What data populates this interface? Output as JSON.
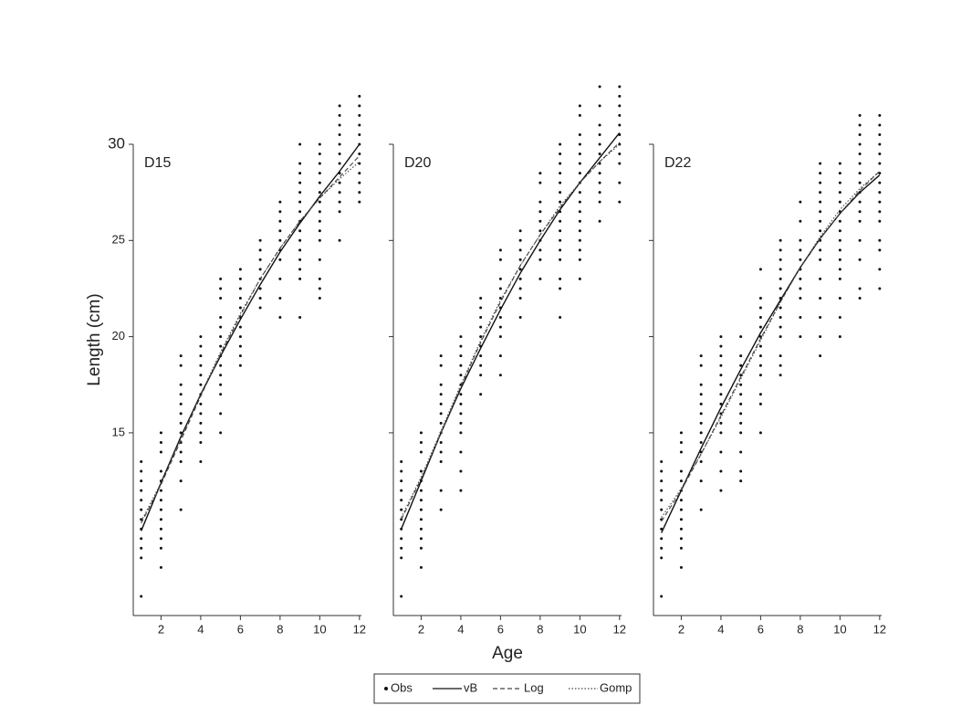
{
  "chart_data": [
    {
      "type": "scatter",
      "title": "D15",
      "ylabel": "Length (cm)",
      "xlim": [
        0.6,
        12.1
      ],
      "xticks": [
        2,
        4,
        6,
        8,
        10,
        12
      ],
      "ylim": [
        5.5,
        30
      ],
      "yticks": [
        15,
        20,
        25,
        30
      ],
      "ages": [
        1,
        2,
        3,
        4,
        5,
        6,
        7,
        8,
        9,
        10,
        11,
        12
      ],
      "series": [
        {
          "name": "Obs",
          "color": "#111111",
          "style": "dots",
          "values": [
            [
              13.5,
              13,
              12.5,
              12,
              11.5,
              11,
              10.5,
              10,
              9.5,
              9,
              8.5,
              6.5
            ],
            [
              15,
              14.5,
              14,
              13,
              12.5,
              12,
              11.5,
              11,
              10.5,
              10,
              9.5,
              9,
              8
            ],
            [
              19,
              18.5,
              17.5,
              17,
              16.5,
              16,
              15.5,
              15,
              14.5,
              14,
              13.5,
              12.5,
              11
            ],
            [
              20,
              19.5,
              19,
              18.5,
              18,
              17.5,
              17,
              16.5,
              16,
              15.5,
              15,
              14.5,
              13.5
            ],
            [
              23,
              22.5,
              22,
              21,
              20.5,
              20,
              19.5,
              19,
              18.5,
              18,
              17.5,
              17,
              16,
              15
            ],
            [
              23.5,
              23,
              22.5,
              22,
              21.5,
              21,
              20.5,
              20,
              19.5,
              19,
              18.5
            ],
            [
              25,
              24.5,
              24,
              23.5,
              23,
              22.5,
              22,
              21.5
            ],
            [
              27,
              26.5,
              26,
              25.5,
              25,
              24.5,
              24,
              23,
              22,
              21
            ],
            [
              30,
              29,
              28.5,
              28,
              27.5,
              27,
              26.5,
              26,
              25.5,
              25,
              24.5,
              24,
              23.5,
              23,
              21
            ],
            [
              30,
              29.5,
              29,
              28.5,
              28,
              27.5,
              27,
              26.5,
              26,
              25.5,
              25,
              24,
              23,
              22.5,
              22
            ],
            [
              32,
              31.5,
              31,
              30.5,
              30,
              29.5,
              29,
              28.5,
              28,
              27.5,
              27,
              26.5,
              25
            ],
            [
              32.5,
              32,
              31.5,
              31,
              30.5,
              30,
              29.5,
              29,
              28.5,
              28,
              27.5,
              27
            ]
          ]
        },
        {
          "name": "vB",
          "color": "#111111",
          "style": "solid",
          "values": [
            9.9,
            12.4,
            14.8,
            17.0,
            19.0,
            20.9,
            22.7,
            24.4,
            25.9,
            27.3,
            28.6,
            30.0
          ]
        },
        {
          "name": "Log",
          "color": "#444444",
          "style": "dashed",
          "values": [
            10.3,
            12.3,
            14.6,
            16.9,
            19.1,
            21.1,
            23.0,
            24.6,
            26.0,
            27.2,
            28.3,
            29.4
          ]
        },
        {
          "name": "Gomp",
          "color": "#444444",
          "style": "dotted",
          "values": [
            10.4,
            12.4,
            14.7,
            17.0,
            19.2,
            21.2,
            23.0,
            24.6,
            26.0,
            27.2,
            28.2,
            29.1
          ]
        }
      ]
    },
    {
      "type": "scatter",
      "title": "D20",
      "xlabel": "Age",
      "xlim": [
        0.6,
        12.1
      ],
      "xticks": [
        2,
        4,
        6,
        8,
        10,
        12
      ],
      "ylim": [
        5.5,
        30
      ],
      "ages": [
        1,
        2,
        3,
        4,
        5,
        6,
        7,
        8,
        9,
        10,
        11,
        12
      ],
      "series": [
        {
          "name": "Obs",
          "color": "#111111",
          "style": "dots",
          "values": [
            [
              13.5,
              13,
              12.5,
              12,
              11.5,
              11,
              10.5,
              10,
              9.5,
              9,
              8.5,
              6.5
            ],
            [
              15,
              14.5,
              14,
              13,
              12.5,
              12,
              11.5,
              11,
              10.5,
              10,
              9.5,
              9,
              8
            ],
            [
              19,
              18.5,
              17.5,
              17,
              16.5,
              16,
              15.5,
              15,
              14.5,
              14,
              13.5,
              12,
              11
            ],
            [
              20,
              19.5,
              19,
              18.5,
              18,
              17.5,
              17,
              16.5,
              16,
              15.5,
              15,
              14,
              13,
              12
            ],
            [
              22,
              21.5,
              21,
              20.5,
              20,
              19.5,
              19,
              18.5,
              18,
              17
            ],
            [
              24.5,
              24,
              23,
              22.5,
              22,
              21.5,
              21,
              20.5,
              20,
              19,
              18
            ],
            [
              25.5,
              25,
              24.5,
              24,
              23.5,
              23,
              22.5,
              22,
              21
            ],
            [
              28.5,
              28,
              27,
              26.5,
              26,
              25.5,
              25,
              24.5,
              24,
              23
            ],
            [
              30,
              29.5,
              29,
              28.5,
              28,
              27.5,
              27,
              26.5,
              26,
              25.5,
              25,
              24.5,
              24,
              23,
              22.5,
              21
            ],
            [
              32,
              31.5,
              30.5,
              30,
              29.5,
              29,
              28.5,
              28,
              27.5,
              27,
              26.5,
              26,
              25.5,
              25,
              24.5,
              24,
              23
            ],
            [
              33,
              32,
              31,
              30.5,
              30,
              29.5,
              29,
              28.5,
              28,
              27.5,
              27,
              26
            ],
            [
              33,
              32.5,
              32,
              31.5,
              31,
              30.5,
              30,
              29.5,
              29,
              28,
              27
            ]
          ]
        },
        {
          "name": "vB",
          "color": "#111111",
          "style": "solid",
          "values": [
            10.0,
            12.5,
            15.0,
            17.3,
            19.4,
            21.4,
            23.3,
            25.0,
            26.6,
            28.0,
            29.3,
            30.6
          ]
        },
        {
          "name": "Log",
          "color": "#444444",
          "style": "dashed",
          "values": [
            10.5,
            12.6,
            15.0,
            17.4,
            19.7,
            21.8,
            23.7,
            25.3,
            26.7,
            28.0,
            29.1,
            30.1
          ]
        },
        {
          "name": "Gomp",
          "color": "#444444",
          "style": "dotted",
          "values": [
            10.6,
            12.7,
            15.1,
            17.5,
            19.8,
            21.9,
            23.7,
            25.3,
            26.8,
            28.0,
            29.1,
            30.0
          ]
        }
      ]
    },
    {
      "type": "scatter",
      "title": "D22",
      "xlim": [
        0.6,
        12.1
      ],
      "xticks": [
        2,
        4,
        6,
        8,
        10,
        12
      ],
      "ylim": [
        5.5,
        30
      ],
      "ages": [
        1,
        2,
        3,
        4,
        5,
        6,
        7,
        8,
        9,
        10,
        11,
        12
      ],
      "series": [
        {
          "name": "Obs",
          "color": "#111111",
          "style": "dots",
          "values": [
            [
              13.5,
              13,
              12.5,
              12,
              11.5,
              11,
              10.5,
              10,
              9.5,
              9,
              8.5,
              6.5
            ],
            [
              15,
              14.5,
              14,
              13,
              12.5,
              12,
              11.5,
              11,
              10.5,
              10,
              9.5,
              9,
              8
            ],
            [
              19,
              18.5,
              17.5,
              17,
              16.5,
              16,
              15.5,
              15,
              14.5,
              14,
              13.5,
              12.5,
              11
            ],
            [
              20,
              19.5,
              19,
              18.5,
              18,
              17.5,
              17,
              16.5,
              16,
              15.5,
              15,
              14,
              13,
              12
            ],
            [
              20,
              19,
              18.5,
              18,
              17.5,
              17,
              16.5,
              16,
              15.5,
              15,
              14,
              13,
              12.5
            ],
            [
              23.5,
              22,
              21.5,
              21,
              20.5,
              20,
              19.5,
              19,
              18.5,
              18,
              17,
              16.5,
              15
            ],
            [
              25,
              24.5,
              24,
              23.5,
              23,
              22.5,
              22,
              21.5,
              21,
              20.5,
              20,
              19,
              18.5,
              18
            ],
            [
              27,
              26,
              25,
              24.5,
              24,
              23.5,
              23,
              22.5,
              22,
              21,
              20
            ],
            [
              29,
              28.5,
              28,
              27.5,
              27,
              26.5,
              26,
              25.5,
              25,
              24.5,
              24,
              23,
              22,
              21,
              20,
              19
            ],
            [
              29,
              28.5,
              28,
              27.5,
              27,
              26.5,
              26,
              25.5,
              25,
              24.5,
              24,
              23.5,
              23,
              22,
              21,
              20
            ],
            [
              31.5,
              31,
              30.5,
              30,
              29.5,
              29,
              28.5,
              28,
              27.5,
              27,
              26.5,
              26,
              25,
              24,
              22.5,
              22
            ],
            [
              31.5,
              31,
              30.5,
              30,
              29.5,
              29,
              28.5,
              28,
              27.5,
              27,
              26.5,
              26,
              25,
              24.5,
              23.5,
              22.5
            ]
          ]
        },
        {
          "name": "vB",
          "color": "#111111",
          "style": "solid",
          "values": [
            9.8,
            12.0,
            14.2,
            16.3,
            18.3,
            20.2,
            21.9,
            23.6,
            25.1,
            26.4,
            27.5,
            28.4
          ]
        },
        {
          "name": "Log",
          "color": "#444444",
          "style": "dashed",
          "values": [
            10.4,
            12.0,
            13.9,
            15.9,
            17.9,
            19.9,
            21.8,
            23.6,
            25.1,
            26.4,
            27.6,
            28.6
          ]
        },
        {
          "name": "Gomp",
          "color": "#444444",
          "style": "dotted",
          "values": [
            10.6,
            12.1,
            13.9,
            15.8,
            17.8,
            19.8,
            21.8,
            23.6,
            25.2,
            26.6,
            27.7,
            28.6
          ]
        }
      ]
    }
  ]
}
